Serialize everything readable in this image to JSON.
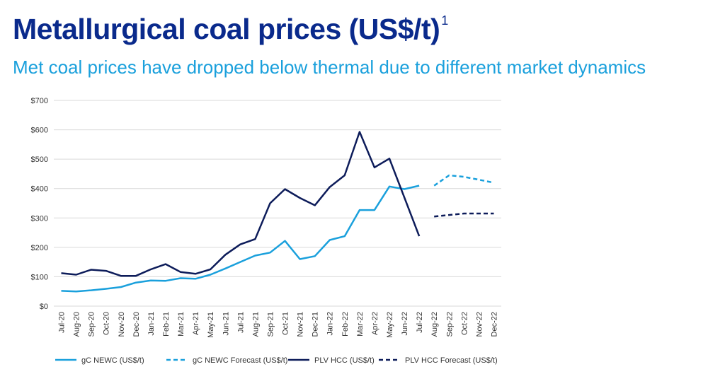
{
  "title": "Metallurgical coal prices (US$/t)",
  "title_footnote": "1",
  "subtitle": "Met coal prices have dropped below thermal due to different market dynamics",
  "colors": {
    "light_blue": "#1aa0dc",
    "navy": "#0d1c5a",
    "grid": "#d9d9d9"
  },
  "chart_data": {
    "type": "line",
    "y_ticks": [
      "$0",
      "$100",
      "$200",
      "$300",
      "$400",
      "$500",
      "$600",
      "$700"
    ],
    "ylim": [
      0,
      700
    ],
    "grid": true,
    "legend_position": "bottom",
    "categories": [
      "Jul-20",
      "Aug-20",
      "Sep-20",
      "Oct-20",
      "Nov-20",
      "Dec-20",
      "Jan-21",
      "Feb-21",
      "Mar-21",
      "Apr-21",
      "May-21",
      "Jun-21",
      "Jul-21",
      "Aug-21",
      "Sep-21",
      "Oct-21",
      "Nov-21",
      "Dec-21",
      "Jan-22",
      "Feb-22",
      "Mar-22",
      "Apr-22",
      "May-22",
      "Jun-22",
      "Jul-22",
      "Aug-22",
      "Sep-22",
      "Oct-22",
      "Nov-22",
      "Dec-22"
    ],
    "series": [
      {
        "name": "gC NEWC (US$/t)",
        "color": "#1aa0dc",
        "dashed": false,
        "values": [
          52,
          50,
          54,
          59,
          65,
          80,
          87,
          86,
          95,
          93,
          107,
          128,
          150,
          172,
          182,
          222,
          160,
          170,
          225,
          238,
          327,
          327,
          407,
          398,
          410,
          null,
          null,
          null,
          null,
          null
        ]
      },
      {
        "name": "gC NEWC Forecast (US$/t)",
        "color": "#1aa0dc",
        "dashed": true,
        "values": [
          null,
          null,
          null,
          null,
          null,
          null,
          null,
          null,
          null,
          null,
          null,
          null,
          null,
          null,
          null,
          null,
          null,
          null,
          null,
          null,
          null,
          null,
          null,
          null,
          null,
          410,
          445,
          440,
          430,
          420
        ]
      },
      {
        "name": "PLV HCC (US$/t)",
        "color": "#0d1c5a",
        "dashed": false,
        "values": [
          112,
          107,
          124,
          120,
          103,
          103,
          125,
          143,
          116,
          110,
          125,
          175,
          210,
          228,
          350,
          398,
          368,
          343,
          405,
          445,
          593,
          472,
          502,
          370,
          238,
          null,
          null,
          null,
          null,
          null
        ]
      },
      {
        "name": "PLV HCC Forecast (US$/t)",
        "color": "#0d1c5a",
        "dashed": true,
        "values": [
          null,
          null,
          null,
          null,
          null,
          null,
          null,
          null,
          null,
          null,
          null,
          null,
          null,
          null,
          null,
          null,
          null,
          null,
          null,
          null,
          null,
          null,
          null,
          null,
          null,
          305,
          310,
          315,
          315,
          315
        ]
      }
    ]
  }
}
